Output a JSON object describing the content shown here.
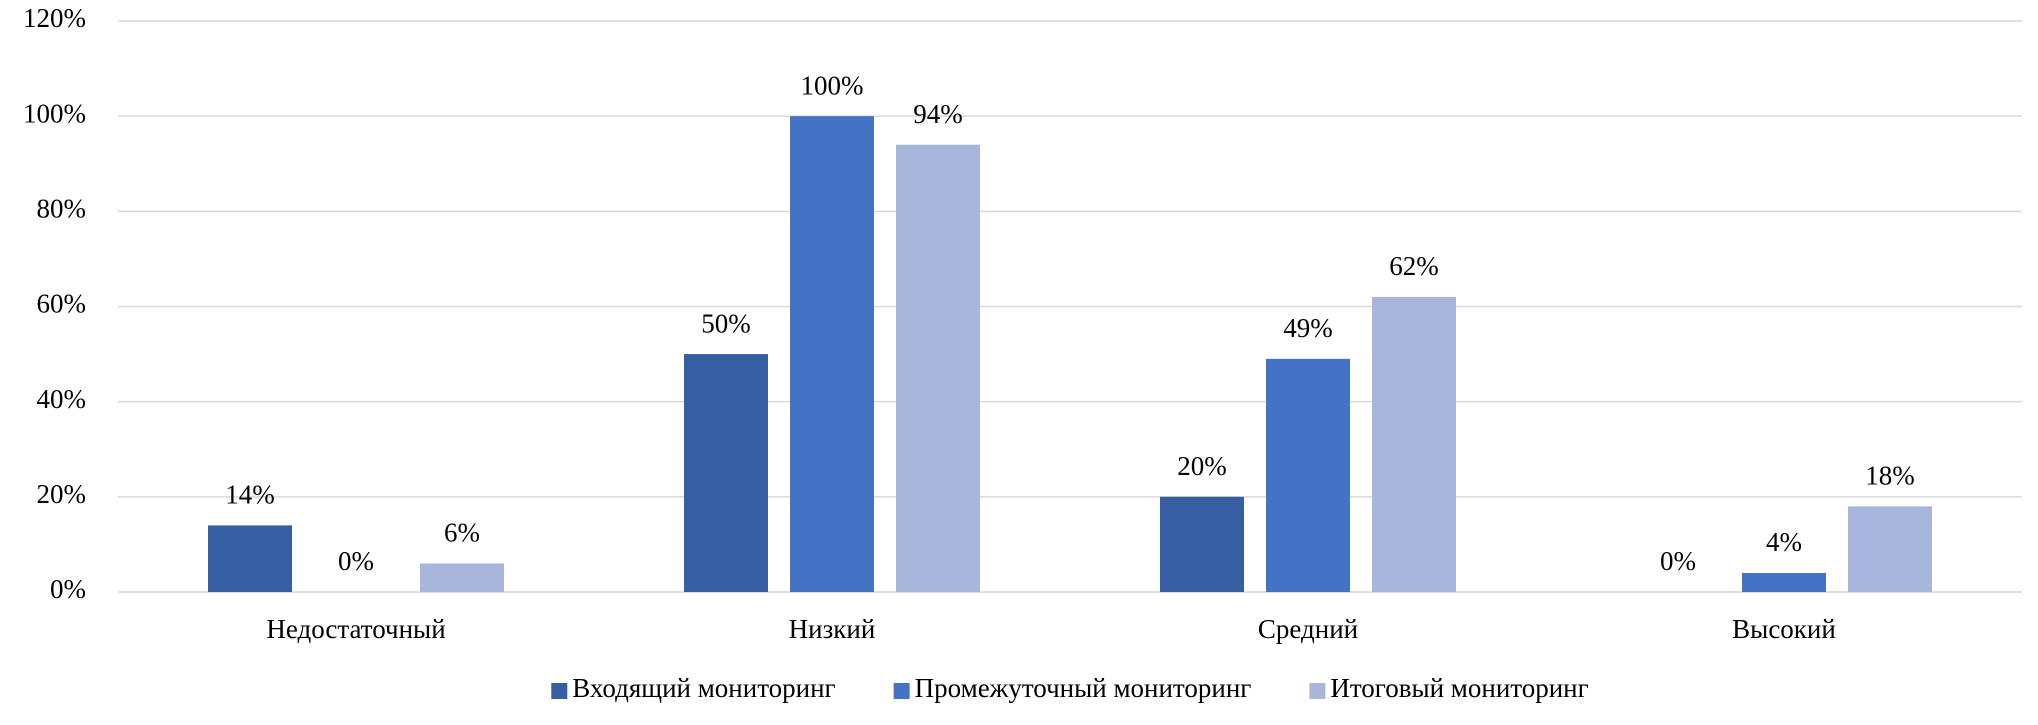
{
  "chart_data": {
    "type": "bar",
    "categories": [
      "Недостаточный",
      "Низкий",
      "Средний",
      "Высокий"
    ],
    "series": [
      {
        "name": "Входящий мониторинг",
        "color": "#355ea3",
        "values": [
          14,
          50,
          20,
          0
        ],
        "value_labels": [
          "14%",
          "50%",
          "20%",
          "0%"
        ]
      },
      {
        "name": "Промежуточный мониторинг",
        "color": "#4472c4",
        "values": [
          0,
          100,
          49,
          4
        ],
        "value_labels": [
          "0%",
          "100%",
          "49%",
          "4%"
        ]
      },
      {
        "name": "Итоговый мониторинг",
        "color": "#a9b6db",
        "values": [
          6,
          94,
          62,
          18
        ],
        "value_labels": [
          "6%",
          "94%",
          "62%",
          "18%"
        ]
      }
    ],
    "ylim": [
      0,
      120
    ],
    "yticks": [
      {
        "value": 0,
        "label": "0%"
      },
      {
        "value": 20,
        "label": "20%"
      },
      {
        "value": 40,
        "label": "40%"
      },
      {
        "value": 60,
        "label": "60%"
      },
      {
        "value": 80,
        "label": "80%"
      },
      {
        "value": 100,
        "label": "100%"
      },
      {
        "value": 120,
        "label": "120%"
      }
    ],
    "grid": true,
    "legend": "bottom"
  }
}
